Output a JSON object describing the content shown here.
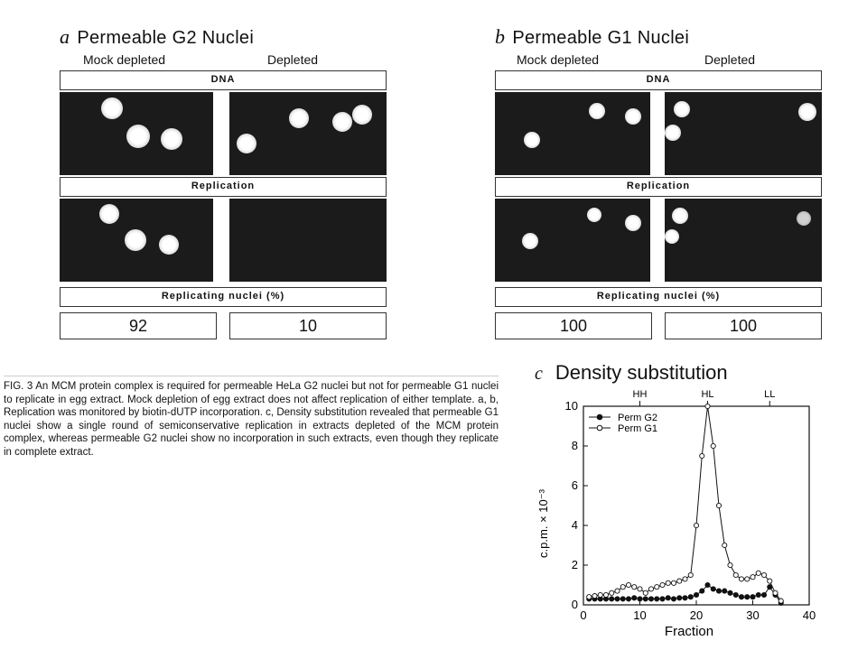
{
  "panel_a": {
    "letter": "a",
    "title": "Permeable G2 Nuclei",
    "mock": "Mock depleted",
    "depleted": "Depleted",
    "dna_label": "DNA",
    "replication_label": "Replication",
    "replicating_label": "Replicating nuclei (%)",
    "mock_value": "92",
    "depleted_value": "10"
  },
  "panel_b": {
    "letter": "b",
    "title": "Permeable G1 Nuclei",
    "mock": "Mock depleted",
    "depleted": "Depleted",
    "dna_label": "DNA",
    "replication_label": "Replication",
    "replicating_label": "Replicating nuclei (%)",
    "mock_value": "100",
    "depleted_value": "100"
  },
  "caption": "FIG. 3 An MCM protein complex is required for permeable HeLa G2 nuclei but not for permeable G1 nuclei to replicate in egg extract. Mock depletion of egg extract does not affect replication of either template. a, b, Replication was monitored by biotin-dUTP incorporation. c, Density substitution revealed that permeable G1 nuclei show a single round of semiconservative replication in extracts depleted of the MCM protein complex, whereas permeable G2 nuclei show no incorporation in such extracts, even though they replicate in complete extract.",
  "chart_data": {
    "type": "line",
    "letter": "c",
    "title": "Density substitution",
    "xlabel": "Fraction",
    "ylabel": "c.p.m. × 10⁻³",
    "xlim": [
      0,
      40
    ],
    "ylim": [
      0,
      10
    ],
    "xticks": [
      0,
      10,
      20,
      30,
      40
    ],
    "yticks": [
      0,
      2,
      4,
      6,
      8,
      10
    ],
    "density_markers": [
      {
        "label": "HH",
        "x": 10
      },
      {
        "label": "HL",
        "x": 22
      },
      {
        "label": "LL",
        "x": 33
      }
    ],
    "legend_position": "top-left",
    "series": [
      {
        "name": "Perm G2",
        "marker": "filled",
        "x": [
          1,
          2,
          3,
          4,
          5,
          6,
          7,
          8,
          9,
          10,
          11,
          12,
          13,
          14,
          15,
          16,
          17,
          18,
          19,
          20,
          21,
          22,
          23,
          24,
          25,
          26,
          27,
          28,
          29,
          30,
          31,
          32,
          33,
          34,
          35
        ],
        "values": [
          0.3,
          0.3,
          0.3,
          0.3,
          0.3,
          0.3,
          0.3,
          0.3,
          0.35,
          0.3,
          0.3,
          0.3,
          0.3,
          0.3,
          0.35,
          0.3,
          0.35,
          0.35,
          0.4,
          0.5,
          0.7,
          1.0,
          0.8,
          0.7,
          0.7,
          0.6,
          0.5,
          0.4,
          0.4,
          0.4,
          0.5,
          0.5,
          0.9,
          0.5,
          0.1
        ]
      },
      {
        "name": "Perm G1",
        "marker": "open",
        "x": [
          1,
          2,
          3,
          4,
          5,
          6,
          7,
          8,
          9,
          10,
          11,
          12,
          13,
          14,
          15,
          16,
          17,
          18,
          19,
          20,
          21,
          22,
          23,
          24,
          25,
          26,
          27,
          28,
          29,
          30,
          31,
          32,
          33,
          34,
          35
        ],
        "values": [
          0.4,
          0.45,
          0.5,
          0.5,
          0.6,
          0.7,
          0.9,
          1.0,
          0.9,
          0.8,
          0.6,
          0.8,
          0.9,
          1.0,
          1.1,
          1.1,
          1.2,
          1.3,
          1.5,
          4.0,
          7.5,
          10.0,
          8.0,
          5.0,
          3.0,
          2.0,
          1.5,
          1.3,
          1.3,
          1.4,
          1.6,
          1.5,
          1.2,
          0.6,
          0.2
        ]
      }
    ]
  }
}
